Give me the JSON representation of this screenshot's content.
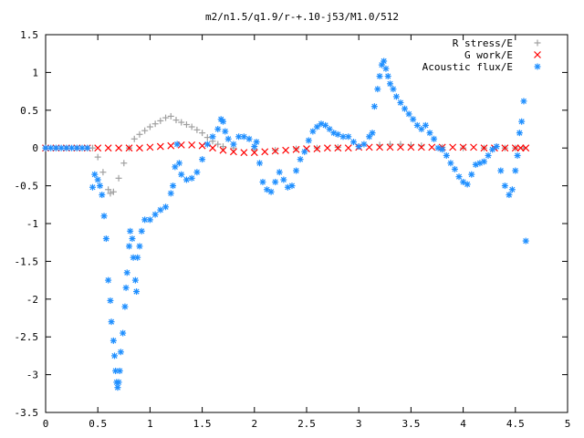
{
  "chart_data": {
    "type": "scatter",
    "title": "m2/n1.5/q1.9/r-+.10-j53/M1.0/512",
    "xlabel": "",
    "ylabel": "",
    "xlim": [
      0,
      5
    ],
    "ylim": [
      -3.5,
      1.5
    ],
    "grid": false,
    "legend_position": "top-right",
    "x_ticks": [
      0,
      0.5,
      1,
      1.5,
      2,
      2.5,
      3,
      3.5,
      4,
      4.5,
      5
    ],
    "x_tick_labels": [
      "0",
      "0.5",
      "1",
      "1.5",
      "2",
      "2.5",
      "3",
      "3.5",
      "4",
      "4.5",
      "5"
    ],
    "y_ticks": [
      -3.5,
      -3,
      -2.5,
      -2,
      -1.5,
      -1,
      -0.5,
      0,
      0.5,
      1,
      1.5
    ],
    "y_tick_labels": [
      "-3.5",
      "-3",
      "-2.5",
      "-2",
      "-1.5",
      "-1",
      "-0.5",
      "0",
      "0.5",
      "1",
      "1.5"
    ],
    "series": [
      {
        "name": "R stress/E",
        "color": "#a0a0a0",
        "marker": "plus",
        "points": [
          [
            0.0,
            0
          ],
          [
            0.1,
            0
          ],
          [
            0.2,
            0
          ],
          [
            0.3,
            0
          ],
          [
            0.4,
            0
          ],
          [
            0.45,
            0
          ],
          [
            0.5,
            -0.12
          ],
          [
            0.55,
            -0.32
          ],
          [
            0.6,
            -0.55
          ],
          [
            0.62,
            -0.6
          ],
          [
            0.65,
            -0.58
          ],
          [
            0.7,
            -0.4
          ],
          [
            0.75,
            -0.2
          ],
          [
            0.8,
            0.0
          ],
          [
            0.85,
            0.12
          ],
          [
            0.9,
            0.18
          ],
          [
            0.95,
            0.23
          ],
          [
            1.0,
            0.28
          ],
          [
            1.05,
            0.32
          ],
          [
            1.1,
            0.36
          ],
          [
            1.15,
            0.4
          ],
          [
            1.2,
            0.42
          ],
          [
            1.25,
            0.37
          ],
          [
            1.3,
            0.34
          ],
          [
            1.35,
            0.31
          ],
          [
            1.4,
            0.28
          ],
          [
            1.45,
            0.24
          ],
          [
            1.5,
            0.2
          ],
          [
            1.55,
            0.14
          ],
          [
            1.6,
            0.09
          ],
          [
            1.65,
            0.05
          ],
          [
            1.7,
            0.02
          ],
          [
            1.8,
            0.0
          ],
          [
            2.0,
            -0.02
          ],
          [
            2.2,
            -0.03
          ],
          [
            2.4,
            -0.01
          ],
          [
            2.6,
            0.0
          ],
          [
            2.8,
            0.01
          ],
          [
            3.0,
            0.02
          ],
          [
            3.2,
            0.04
          ],
          [
            3.3,
            0.05
          ],
          [
            3.4,
            0.05
          ],
          [
            3.5,
            0.04
          ],
          [
            3.6,
            0.03
          ],
          [
            3.8,
            0.01
          ],
          [
            4.0,
            0.0
          ],
          [
            4.2,
            0.0
          ],
          [
            4.4,
            0.0
          ],
          [
            4.5,
            0.0
          ],
          [
            4.58,
            0.0
          ]
        ]
      },
      {
        "name": "G work/E",
        "color": "#ff0000",
        "marker": "cross",
        "points": [
          [
            0.0,
            0
          ],
          [
            0.1,
            0
          ],
          [
            0.2,
            0
          ],
          [
            0.3,
            0
          ],
          [
            0.4,
            0
          ],
          [
            0.5,
            0
          ],
          [
            0.6,
            0
          ],
          [
            0.7,
            0
          ],
          [
            0.8,
            0
          ],
          [
            0.9,
            0.0
          ],
          [
            1.0,
            0.01
          ],
          [
            1.1,
            0.02
          ],
          [
            1.2,
            0.03
          ],
          [
            1.3,
            0.04
          ],
          [
            1.4,
            0.04
          ],
          [
            1.5,
            0.03
          ],
          [
            1.6,
            0.0
          ],
          [
            1.7,
            -0.03
          ],
          [
            1.8,
            -0.05
          ],
          [
            1.9,
            -0.06
          ],
          [
            2.0,
            -0.06
          ],
          [
            2.1,
            -0.05
          ],
          [
            2.2,
            -0.04
          ],
          [
            2.3,
            -0.03
          ],
          [
            2.4,
            -0.02
          ],
          [
            2.5,
            -0.01
          ],
          [
            2.6,
            -0.01
          ],
          [
            2.7,
            0.0
          ],
          [
            2.8,
            0.0
          ],
          [
            2.9,
            0.0
          ],
          [
            3.0,
            0.01
          ],
          [
            3.1,
            0.01
          ],
          [
            3.2,
            0.01
          ],
          [
            3.3,
            0.01
          ],
          [
            3.4,
            0.01
          ],
          [
            3.5,
            0.01
          ],
          [
            3.6,
            0.01
          ],
          [
            3.7,
            0.01
          ],
          [
            3.8,
            0.01
          ],
          [
            3.9,
            0.01
          ],
          [
            4.0,
            0.01
          ],
          [
            4.1,
            0.01
          ],
          [
            4.2,
            0.0
          ],
          [
            4.3,
            0.0
          ],
          [
            4.4,
            0.0
          ],
          [
            4.5,
            0.0
          ],
          [
            4.55,
            0.0
          ],
          [
            4.6,
            0.0
          ]
        ]
      },
      {
        "name": "Acoustic flux/E",
        "color": "#1f8fff",
        "marker": "star",
        "points": [
          [
            0.0,
            0
          ],
          [
            0.05,
            0
          ],
          [
            0.1,
            0
          ],
          [
            0.15,
            0
          ],
          [
            0.2,
            0
          ],
          [
            0.25,
            0
          ],
          [
            0.3,
            0
          ],
          [
            0.35,
            0
          ],
          [
            0.4,
            0
          ],
          [
            0.45,
            -0.52
          ],
          [
            0.47,
            -0.35
          ],
          [
            0.5,
            -0.42
          ],
          [
            0.52,
            -0.5
          ],
          [
            0.54,
            -0.62
          ],
          [
            0.56,
            -0.9
          ],
          [
            0.58,
            -1.2
          ],
          [
            0.6,
            -1.75
          ],
          [
            0.62,
            -2.02
          ],
          [
            0.63,
            -2.3
          ],
          [
            0.65,
            -2.55
          ],
          [
            0.66,
            -2.75
          ],
          [
            0.67,
            -2.95
          ],
          [
            0.68,
            -3.1
          ],
          [
            0.69,
            -3.17
          ],
          [
            0.7,
            -3.1
          ],
          [
            0.71,
            -2.95
          ],
          [
            0.72,
            -2.7
          ],
          [
            0.74,
            -2.45
          ],
          [
            0.76,
            -2.1
          ],
          [
            0.77,
            -1.85
          ],
          [
            0.78,
            -1.65
          ],
          [
            0.8,
            -1.3
          ],
          [
            0.81,
            -1.1
          ],
          [
            0.83,
            -1.2
          ],
          [
            0.84,
            -1.45
          ],
          [
            0.86,
            -1.75
          ],
          [
            0.87,
            -1.9
          ],
          [
            0.88,
            -1.45
          ],
          [
            0.9,
            -1.3
          ],
          [
            0.92,
            -1.1
          ],
          [
            0.95,
            -0.95
          ],
          [
            1.0,
            -0.95
          ],
          [
            1.05,
            -0.88
          ],
          [
            1.1,
            -0.82
          ],
          [
            1.15,
            -0.78
          ],
          [
            1.2,
            -0.6
          ],
          [
            1.22,
            -0.5
          ],
          [
            1.24,
            -0.25
          ],
          [
            1.26,
            0.05
          ],
          [
            1.28,
            -0.2
          ],
          [
            1.3,
            -0.35
          ],
          [
            1.35,
            -0.42
          ],
          [
            1.4,
            -0.4
          ],
          [
            1.45,
            -0.32
          ],
          [
            1.5,
            -0.15
          ],
          [
            1.55,
            0.05
          ],
          [
            1.6,
            0.15
          ],
          [
            1.65,
            0.25
          ],
          [
            1.68,
            0.38
          ],
          [
            1.7,
            0.35
          ],
          [
            1.72,
            0.22
          ],
          [
            1.75,
            0.12
          ],
          [
            1.8,
            0.05
          ],
          [
            1.85,
            0.15
          ],
          [
            1.9,
            0.15
          ],
          [
            1.95,
            0.12
          ],
          [
            2.0,
            0.02
          ],
          [
            2.02,
            0.08
          ],
          [
            2.05,
            -0.2
          ],
          [
            2.08,
            -0.45
          ],
          [
            2.12,
            -0.55
          ],
          [
            2.16,
            -0.58
          ],
          [
            2.2,
            -0.45
          ],
          [
            2.24,
            -0.32
          ],
          [
            2.28,
            -0.42
          ],
          [
            2.32,
            -0.52
          ],
          [
            2.36,
            -0.5
          ],
          [
            2.4,
            -0.3
          ],
          [
            2.44,
            -0.15
          ],
          [
            2.48,
            -0.05
          ],
          [
            2.52,
            0.1
          ],
          [
            2.56,
            0.22
          ],
          [
            2.6,
            0.28
          ],
          [
            2.64,
            0.32
          ],
          [
            2.68,
            0.3
          ],
          [
            2.72,
            0.25
          ],
          [
            2.76,
            0.2
          ],
          [
            2.8,
            0.18
          ],
          [
            2.85,
            0.15
          ],
          [
            2.9,
            0.15
          ],
          [
            2.95,
            0.08
          ],
          [
            3.0,
            0.02
          ],
          [
            3.05,
            0.05
          ],
          [
            3.1,
            0.15
          ],
          [
            3.13,
            0.2
          ],
          [
            3.15,
            0.55
          ],
          [
            3.18,
            0.78
          ],
          [
            3.2,
            0.95
          ],
          [
            3.22,
            1.1
          ],
          [
            3.24,
            1.15
          ],
          [
            3.26,
            1.05
          ],
          [
            3.28,
            0.95
          ],
          [
            3.3,
            0.85
          ],
          [
            3.33,
            0.78
          ],
          [
            3.36,
            0.68
          ],
          [
            3.4,
            0.6
          ],
          [
            3.44,
            0.52
          ],
          [
            3.48,
            0.45
          ],
          [
            3.52,
            0.38
          ],
          [
            3.56,
            0.3
          ],
          [
            3.6,
            0.25
          ],
          [
            3.64,
            0.3
          ],
          [
            3.68,
            0.2
          ],
          [
            3.72,
            0.12
          ],
          [
            3.76,
            0.0
          ],
          [
            3.8,
            -0.02
          ],
          [
            3.84,
            -0.1
          ],
          [
            3.88,
            -0.2
          ],
          [
            3.92,
            -0.28
          ],
          [
            3.96,
            -0.38
          ],
          [
            4.0,
            -0.45
          ],
          [
            4.04,
            -0.48
          ],
          [
            4.08,
            -0.35
          ],
          [
            4.12,
            -0.22
          ],
          [
            4.16,
            -0.2
          ],
          [
            4.2,
            -0.18
          ],
          [
            4.24,
            -0.1
          ],
          [
            4.28,
            -0.02
          ],
          [
            4.32,
            0.02
          ],
          [
            4.36,
            -0.3
          ],
          [
            4.4,
            -0.5
          ],
          [
            4.44,
            -0.62
          ],
          [
            4.47,
            -0.55
          ],
          [
            4.5,
            -0.3
          ],
          [
            4.52,
            -0.1
          ],
          [
            4.54,
            0.2
          ],
          [
            4.56,
            0.35
          ],
          [
            4.58,
            0.62
          ],
          [
            4.6,
            -1.23
          ]
        ]
      }
    ]
  }
}
